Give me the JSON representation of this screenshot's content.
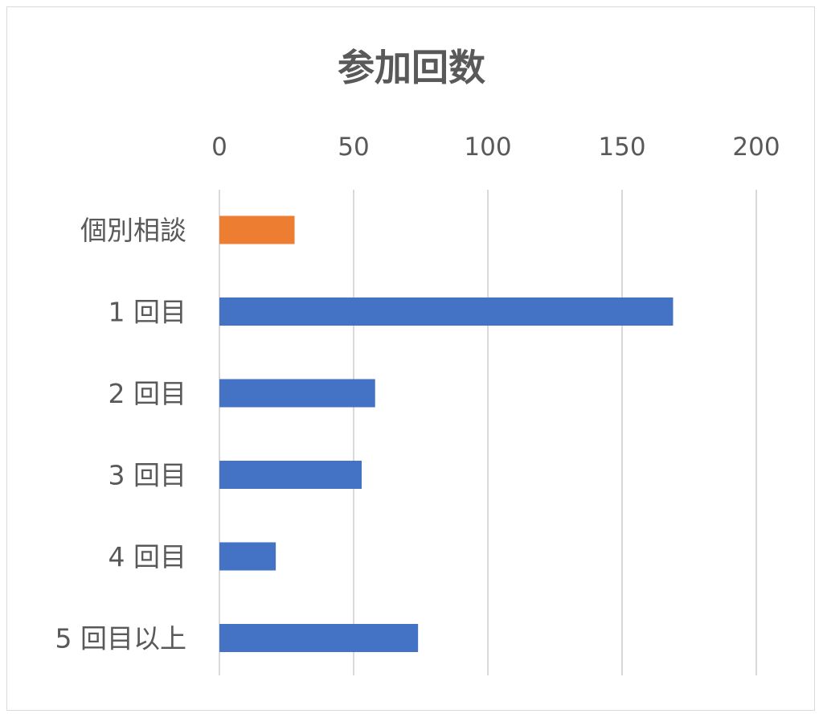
{
  "chart_data": {
    "type": "bar",
    "orientation": "horizontal",
    "title": "参加回数",
    "categories": [
      "個別相談",
      "1 回目",
      "2 回目",
      "3 回目",
      "4 回目",
      "5 回目以上"
    ],
    "values": [
      28,
      169,
      58,
      53,
      21,
      74
    ],
    "bar_colors": [
      "#ED7D31",
      "#4472C4",
      "#4472C4",
      "#4472C4",
      "#4472C4",
      "#4472C4"
    ],
    "xlim": [
      0,
      200
    ],
    "x_ticks": [
      "0",
      "50",
      "100",
      "150",
      "200"
    ],
    "x_axis_position": "top",
    "grid": true,
    "legend": "none"
  }
}
